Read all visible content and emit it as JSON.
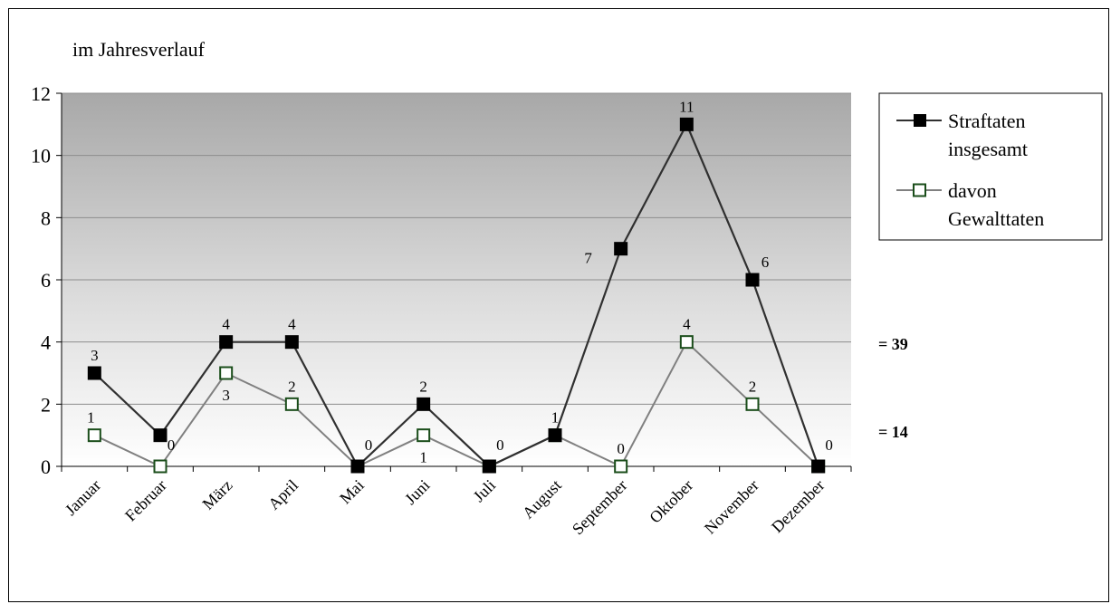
{
  "chart_data": {
    "type": "line",
    "title": "im Jahresverlauf",
    "categories": [
      "Januar",
      "Februar",
      "März",
      "April",
      "Mai",
      "Juni",
      "Juli",
      "August",
      "September",
      "Oktober",
      "November",
      "Dezember"
    ],
    "series": [
      {
        "name": "Straftaten insgesamt",
        "legend_lines": [
          "Straftaten",
          "insgesamt"
        ],
        "values": [
          3,
          1,
          4,
          4,
          0,
          2,
          0,
          1,
          7,
          11,
          6,
          0
        ],
        "data_labels": [
          "3",
          "",
          "4",
          "4",
          "",
          "2",
          "",
          "",
          "7",
          "11",
          "6",
          ""
        ],
        "color": "#303030",
        "marker": "filled-square"
      },
      {
        "name": "davon Gewalttaten",
        "legend_lines": [
          "davon",
          "Gewalttaten"
        ],
        "values": [
          1,
          0,
          3,
          2,
          0,
          1,
          0,
          1,
          0,
          4,
          2,
          0
        ],
        "data_labels": [
          "1",
          "0",
          "3",
          "2",
          "0",
          "1",
          "0",
          "1",
          "0",
          "4",
          "2",
          "0"
        ],
        "color": "#808080",
        "marker": "hollow-square",
        "marker_edge_color": "#1a4d1a"
      }
    ],
    "ylim": [
      0,
      12
    ],
    "yticks": [
      0,
      2,
      4,
      6,
      8,
      10,
      12
    ],
    "grid": true,
    "legend": "right",
    "totals": [
      "= 39",
      "= 14"
    ],
    "background": "vertical gray gradient"
  }
}
